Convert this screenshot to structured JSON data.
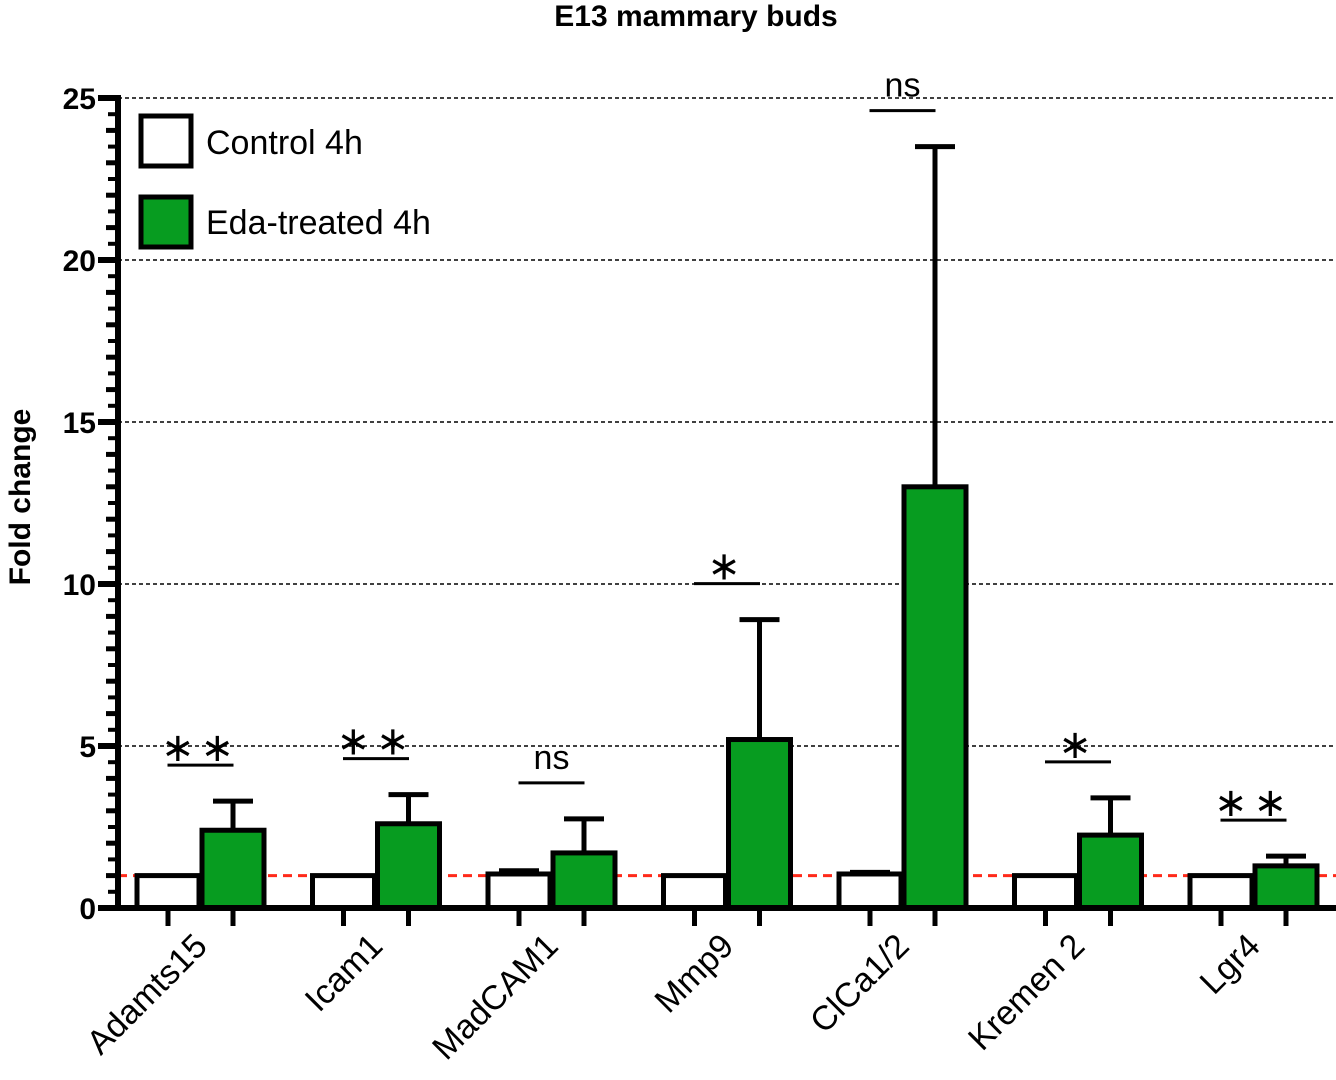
{
  "chart_data": {
    "type": "bar",
    "title": "E13 mammary buds",
    "xlabel": "",
    "ylabel": "Fold change",
    "ylim": [
      0,
      25
    ],
    "yticks": [
      0,
      5,
      10,
      15,
      20,
      25
    ],
    "grid": "horizontal dashed at major ticks",
    "reference_line": {
      "value": 1,
      "color": "#ff2a1a",
      "style": "dashed"
    },
    "legend_placement": "top-left",
    "categories": [
      "Adamts15",
      "Icam1",
      "MadCAM1",
      "Mmp9",
      "ClCa1/2",
      "Kremen 2",
      "Lgr4"
    ],
    "series": [
      {
        "name": "Control 4h",
        "color": "#ffffff",
        "values": [
          1.0,
          1.0,
          1.05,
          1.0,
          1.05,
          1.0,
          1.0
        ],
        "errors": [
          0,
          0,
          0.1,
          0,
          0.05,
          0,
          0
        ]
      },
      {
        "name": "Eda-treated 4h",
        "color": "#079c20",
        "values": [
          2.4,
          2.6,
          1.7,
          5.2,
          13.0,
          2.25,
          1.3
        ],
        "errors": [
          0.9,
          0.9,
          1.05,
          3.7,
          10.5,
          1.15,
          0.3
        ]
      }
    ],
    "significance": [
      "**",
      "**",
      "ns",
      "*",
      "ns",
      "*",
      "**"
    ]
  }
}
